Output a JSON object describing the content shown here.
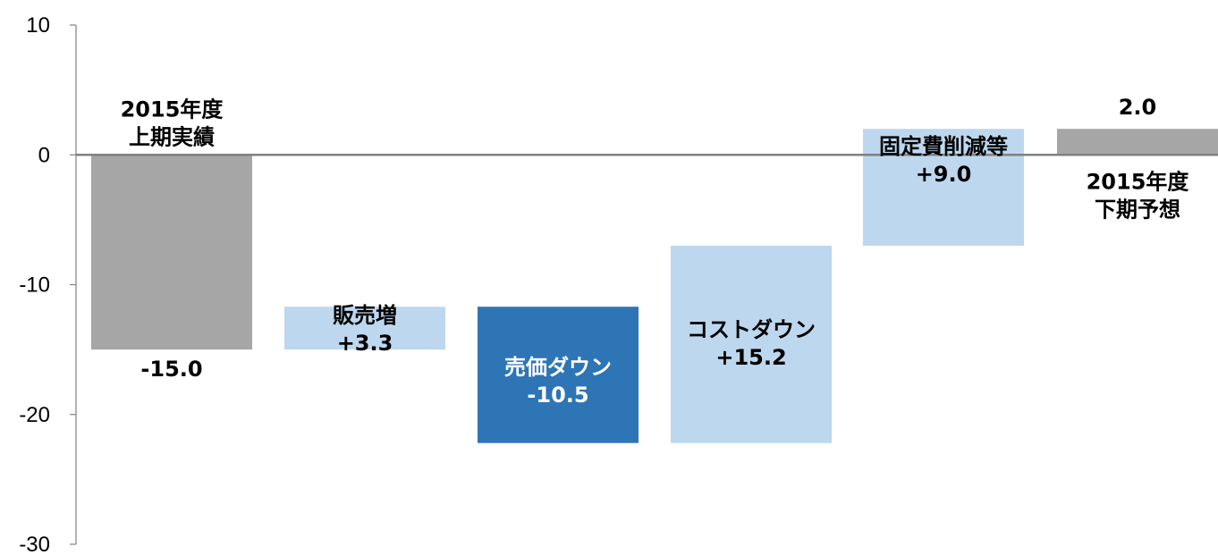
{
  "chart_data": {
    "type": "waterfall",
    "ylim": [
      -30,
      10
    ],
    "yticks": [
      10,
      0,
      -10,
      -20,
      -30
    ],
    "colors": {
      "total": "#a6a6a6",
      "increase": "#bdd7ee",
      "decrease": "#2e75b6",
      "axis": "#808080",
      "label_dark": "#000000",
      "label_light": "#ffffff"
    },
    "bars": [
      {
        "kind": "total",
        "start": 0,
        "end": -15.0,
        "name_lines": [
          "2015年度",
          "上期実績"
        ],
        "value_label": "-15.0"
      },
      {
        "kind": "increase",
        "start": -15.0,
        "end": -11.7,
        "name_lines": [
          "販売増"
        ],
        "value_label": "+3.3"
      },
      {
        "kind": "decrease",
        "start": -11.7,
        "end": -22.2,
        "name_lines": [
          "売価ダウン"
        ],
        "value_label": "-10.5"
      },
      {
        "kind": "increase",
        "start": -22.2,
        "end": -7.0,
        "name_lines": [
          "コストダウン"
        ],
        "value_label": "+15.2"
      },
      {
        "kind": "increase",
        "start": -7.0,
        "end": 2.0,
        "name_lines": [
          "固定費削減等"
        ],
        "value_label": "+9.0"
      },
      {
        "kind": "total",
        "start": 0,
        "end": 2.0,
        "name_lines": [
          "2015年度",
          "下期予想"
        ],
        "value_label": "2.0"
      }
    ]
  }
}
